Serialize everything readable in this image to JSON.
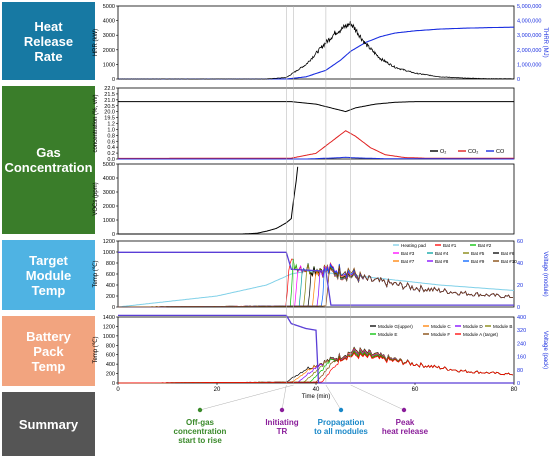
{
  "rows": [
    {
      "label": "Heat\nRelease\nRate",
      "color": "#1779a3"
    },
    {
      "label": "Gas\nConcentration",
      "color": "#3a7d2a"
    },
    {
      "label": "Target\nModule\nTemp",
      "color": "#4fb3e3"
    },
    {
      "label": "Battery\nPack\nTemp",
      "color": "#f2a47f"
    },
    {
      "label": "Summary",
      "color": "#555555"
    }
  ],
  "colors": {
    "hrr": "#000000",
    "thrr": "#1a2ee0",
    "o2": "#000000",
    "co2": "#e02020",
    "co": "#1a2ee0",
    "voc": "#000000",
    "voltage": "#5a3ed6"
  },
  "chart_data": [
    {
      "type": "line",
      "id": "hrr",
      "ylabel": "HRR (kW)",
      "y2label": "THRR (MJ)",
      "xlim": [
        0,
        80
      ],
      "ylim": [
        0,
        5000
      ],
      "y2lim": [
        0,
        5000000
      ],
      "yticks": [
        "5000",
        "4000",
        "3000",
        "2000",
        "1000",
        "0"
      ],
      "y2ticks": [
        "5,000,000",
        "4,000,000",
        "3,000,000",
        "2,000,000",
        "1,000,000",
        "0"
      ],
      "series": [
        {
          "x": [
            0,
            30,
            34,
            38,
            42,
            44,
            46,
            47,
            48,
            50,
            53,
            56,
            60,
            65,
            70,
            75,
            80
          ],
          "y": [
            0,
            0,
            100,
            1000,
            2500,
            3200,
            3600,
            3800,
            3400,
            2400,
            1400,
            800,
            400,
            150,
            60,
            20,
            10
          ]
        },
        {
          "axis": "right",
          "x": [
            0,
            34,
            38,
            42,
            45,
            47,
            50,
            53,
            56,
            60,
            65,
            70,
            75,
            80
          ],
          "y": [
            0,
            0,
            150000,
            600000,
            1300000,
            1900000,
            2500000,
            2900000,
            3150000,
            3300000,
            3420000,
            3480000,
            3520000,
            3550000
          ]
        }
      ]
    },
    {
      "type": "line",
      "id": "gas",
      "ylabel": "concentration (%, v/v)",
      "xlim": [
        0,
        80
      ],
      "ylim": [
        0,
        22
      ],
      "yticks": [
        "22.0",
        "21.5",
        "21.0",
        "20.5",
        "20.0",
        "19.5",
        "1.2",
        "1.0",
        "0.8",
        "0.6",
        "0.4",
        "0.2",
        "0.0"
      ],
      "legend": [
        "O₂",
        "CO₂",
        "CO"
      ],
      "series": [
        {
          "name": "O₂",
          "x": [
            0,
            35,
            40,
            44,
            46,
            48,
            52,
            56,
            60,
            80
          ],
          "y": [
            20.9,
            20.9,
            20.7,
            20.3,
            20.1,
            20.4,
            20.7,
            20.85,
            20.9,
            20.9
          ]
        },
        {
          "name": "CO₂",
          "x": [
            0,
            35,
            40,
            43,
            46,
            48,
            51,
            54,
            58,
            62,
            80
          ],
          "y": [
            0.02,
            0.03,
            0.2,
            0.6,
            1.0,
            0.8,
            0.4,
            0.15,
            0.05,
            0.03,
            0.03
          ]
        },
        {
          "name": "CO",
          "x": [
            0,
            38,
            44,
            46,
            48,
            54,
            80
          ],
          "y": [
            0,
            0,
            0.04,
            0.06,
            0.04,
            0.01,
            0
          ]
        }
      ]
    },
    {
      "type": "line",
      "id": "voc",
      "ylabel": "VOCs (ppm)",
      "xlim": [
        0,
        80
      ],
      "ylim": [
        0,
        5000
      ],
      "yticks": [
        "5000",
        "4000",
        "3000",
        "2000",
        "1000",
        "0"
      ],
      "series": [
        {
          "x": [
            0,
            25,
            28,
            30,
            32,
            33,
            34,
            35,
            35.5,
            36,
            36.3
          ],
          "y": [
            0,
            0,
            50,
            200,
            400,
            600,
            800,
            1100,
            2500,
            3800,
            4800
          ]
        }
      ]
    },
    {
      "type": "line",
      "id": "module",
      "ylabel": "Temp (℃)",
      "y2label": "Voltage (module)",
      "xlim": [
        0,
        80
      ],
      "ylim": [
        0,
        1200
      ],
      "y2lim": [
        0,
        70
      ],
      "yticks": [
        "1200",
        "1000",
        "800",
        "600",
        "400",
        "200",
        "0"
      ],
      "y2ticks": [
        "60",
        "40",
        "20",
        "0"
      ],
      "legend": [
        "Heating pad",
        "Bat #1",
        "Bat #2",
        "Bat #3",
        "Bat #4",
        "Bat #5",
        "Bat #6",
        "Bat #7",
        "Bat #8",
        "Bat #9",
        "Bat #10"
      ],
      "series": [
        {
          "name": "Heating pad",
          "x": [
            0,
            20,
            30,
            35,
            38,
            45,
            55,
            65,
            80
          ],
          "y": [
            0,
            200,
            400,
            600,
            650,
            600,
            500,
            400,
            300
          ]
        },
        {
          "name": "Voltage",
          "axis": "right",
          "x": [
            0,
            34,
            35,
            42,
            43,
            80
          ],
          "y": [
            58,
            58,
            40,
            38,
            2,
            2
          ]
        }
      ]
    },
    {
      "type": "line",
      "id": "pack",
      "ylabel": "Temp (℃)",
      "y2label": "Voltage (pack)",
      "xlabel": "Time (min)",
      "xlim": [
        0,
        80
      ],
      "ylim": [
        0,
        1400
      ],
      "y2lim": [
        0,
        400
      ],
      "xticks": [
        "0",
        "20",
        "40",
        "60",
        "80"
      ],
      "yticks": [
        "1400",
        "1200",
        "1000",
        "800",
        "600",
        "400",
        "200",
        "0"
      ],
      "y2ticks": [
        "400",
        "320",
        "240",
        "160",
        "80",
        "0"
      ],
      "legend": [
        "Module G(upper)",
        "Module C",
        "Module D",
        "Module B",
        "Module E",
        "Module F",
        "Module A (target)"
      ],
      "series": [
        {
          "name": "Voltage",
          "axis": "right",
          "x": [
            0,
            34,
            35,
            38,
            40,
            40.5,
            80
          ],
          "y": [
            410,
            410,
            360,
            330,
            320,
            0,
            0
          ]
        }
      ]
    }
  ],
  "summary": [
    {
      "label": "Off-gas\nconcentration\nstart to rise",
      "color": "#3a8a2a"
    },
    {
      "label": "Initiating\nTR",
      "color": "#8a1d9a"
    },
    {
      "label": "Propagation\nto all modules",
      "color": "#1a88c8"
    },
    {
      "label": "Peak\nheat release",
      "color": "#8a1d9a"
    }
  ]
}
